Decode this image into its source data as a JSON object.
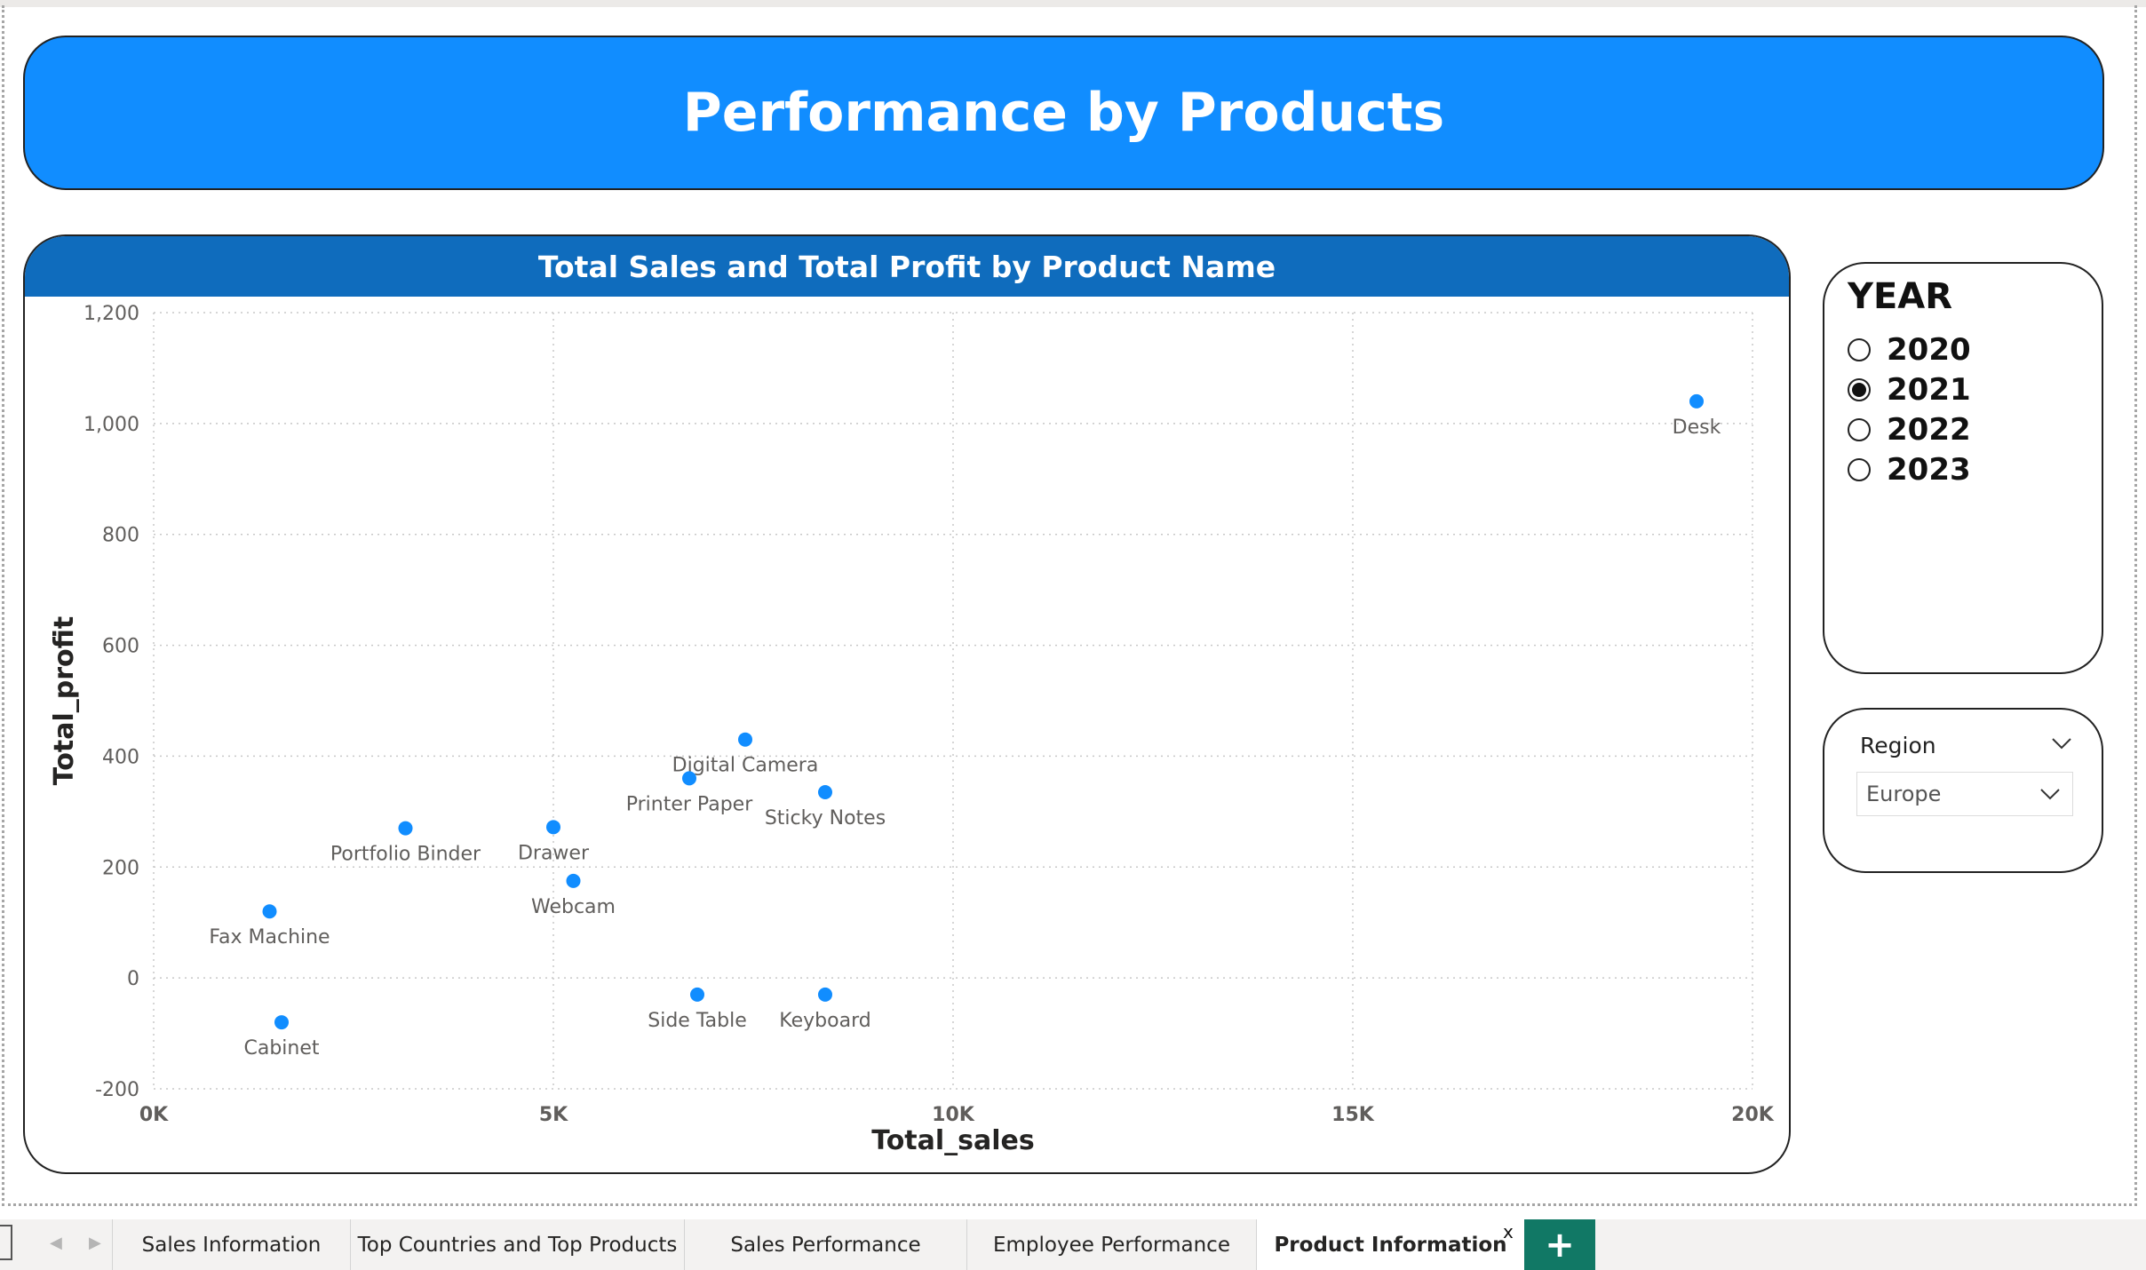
{
  "banner": {
    "title": "Performance by Products"
  },
  "chart": {
    "title": "Total Sales and Total Profit by Product Name",
    "point_color": "#118dff"
  },
  "chart_data": {
    "type": "scatter",
    "title": "Total Sales and Total Profit by Product Name",
    "xlabel": "Total_sales",
    "ylabel": "Total_profit",
    "xlim": [
      0,
      20000
    ],
    "ylim": [
      -200,
      1200
    ],
    "x_ticks": [
      "0K",
      "5K",
      "10K",
      "15K",
      "20K"
    ],
    "y_ticks": [
      "-200",
      "0",
      "200",
      "400",
      "600",
      "800",
      "1,000",
      "1,200"
    ],
    "grid": true,
    "points": [
      {
        "label": "Desk",
        "x": 19300,
        "y": 1040
      },
      {
        "label": "Digital Camera",
        "x": 7400,
        "y": 430
      },
      {
        "label": "Printer Paper",
        "x": 6700,
        "y": 360
      },
      {
        "label": "Sticky Notes",
        "x": 8400,
        "y": 335
      },
      {
        "label": "Portfolio Binder",
        "x": 3150,
        "y": 270
      },
      {
        "label": "Drawer",
        "x": 5000,
        "y": 272
      },
      {
        "label": "Webcam",
        "x": 5250,
        "y": 175
      },
      {
        "label": "Fax Machine",
        "x": 1450,
        "y": 120
      },
      {
        "label": "Side Table",
        "x": 6800,
        "y": -30
      },
      {
        "label": "Keyboard",
        "x": 8400,
        "y": -30
      },
      {
        "label": "Cabinet",
        "x": 1600,
        "y": -80
      }
    ]
  },
  "year_slicer": {
    "title": "YEAR",
    "options": [
      {
        "label": "2020",
        "selected": false
      },
      {
        "label": "2021",
        "selected": true
      },
      {
        "label": "2022",
        "selected": false
      },
      {
        "label": "2023",
        "selected": false
      }
    ]
  },
  "region_slicer": {
    "title": "Region",
    "value": "Europe",
    "icon": "chevron-down-icon"
  },
  "tabs": {
    "items": [
      {
        "label": "Sales Information",
        "active": false
      },
      {
        "label": "Top Countries and Top Products",
        "active": false
      },
      {
        "label": "Sales Performance",
        "active": false
      },
      {
        "label": "Employee Performance",
        "active": false
      },
      {
        "label": "Product Information",
        "active": true
      }
    ],
    "close_label": "x",
    "add_label": "+"
  }
}
